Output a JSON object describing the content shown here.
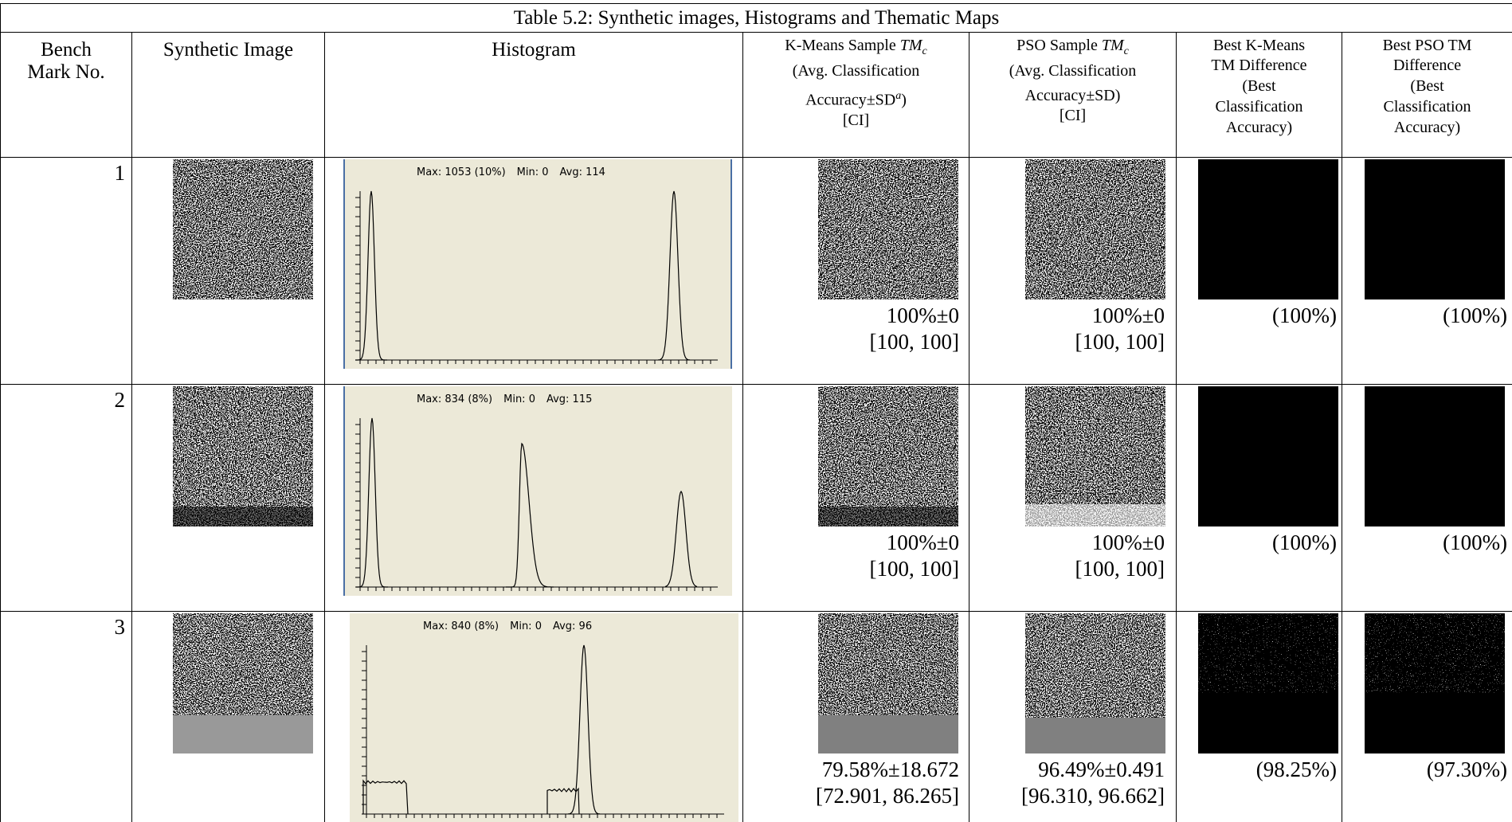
{
  "table": {
    "title": "Table 5.2: Synthetic images, Histograms and Thematic Maps",
    "headers": {
      "bench": [
        "Bench",
        "Mark No."
      ],
      "synthetic": "Synthetic Image",
      "histogram": "Histogram",
      "kmeans": {
        "name": "K-Means Sample",
        "tm": "TM",
        "sub": "c",
        "line2": "(Avg. Classification",
        "line3": "Accuracy±SD",
        "sup": "a",
        "close": ")",
        "line4": "[CI]"
      },
      "pso": {
        "name": "PSO Sample",
        "tm": "TM",
        "sub": "c",
        "line2": "(Avg. Classification",
        "line3": "Accuracy±SD)",
        "line4": "[CI]"
      },
      "best_kmeans": [
        "Best K-Means",
        "TM Difference",
        "(Best",
        "Classification",
        "Accuracy)"
      ],
      "best_pso": [
        "Best PSO TM",
        "Difference",
        "(Best",
        "Classification",
        "Accuracy)"
      ]
    },
    "rows": [
      {
        "no": 1,
        "histogram": {
          "max": "Max: 1053 (10%)",
          "min": "Min: 0",
          "avg": "Avg: 114"
        },
        "kmeans": {
          "accuracy": "100%±0",
          "ci": "[100, 100]"
        },
        "pso": {
          "accuracy": "100%±0",
          "ci": "[100, 100]"
        },
        "best_kmeans": "(100%)",
        "best_pso": "(100%)"
      },
      {
        "no": 2,
        "histogram": {
          "max": "Max: 834 (8%)",
          "min": "Min: 0",
          "avg": "Avg: 115"
        },
        "kmeans": {
          "accuracy": "100%±0",
          "ci": "[100, 100]"
        },
        "pso": {
          "accuracy": "100%±0",
          "ci": "[100, 100]"
        },
        "best_kmeans": "(100%)",
        "best_pso": "(100%)"
      },
      {
        "no": 3,
        "histogram": {
          "max": "Max: 840 (8%)",
          "min": "Min: 0",
          "avg": "Avg: 96"
        },
        "kmeans": {
          "accuracy": "79.58%±18.672",
          "ci": "[72.901, 86.265]"
        },
        "pso": {
          "accuracy": "96.49%±0.491",
          "ci": "[96.310, 96.662]"
        },
        "best_kmeans": "(98.25%)",
        "best_pso": "(97.30%)"
      }
    ]
  }
}
